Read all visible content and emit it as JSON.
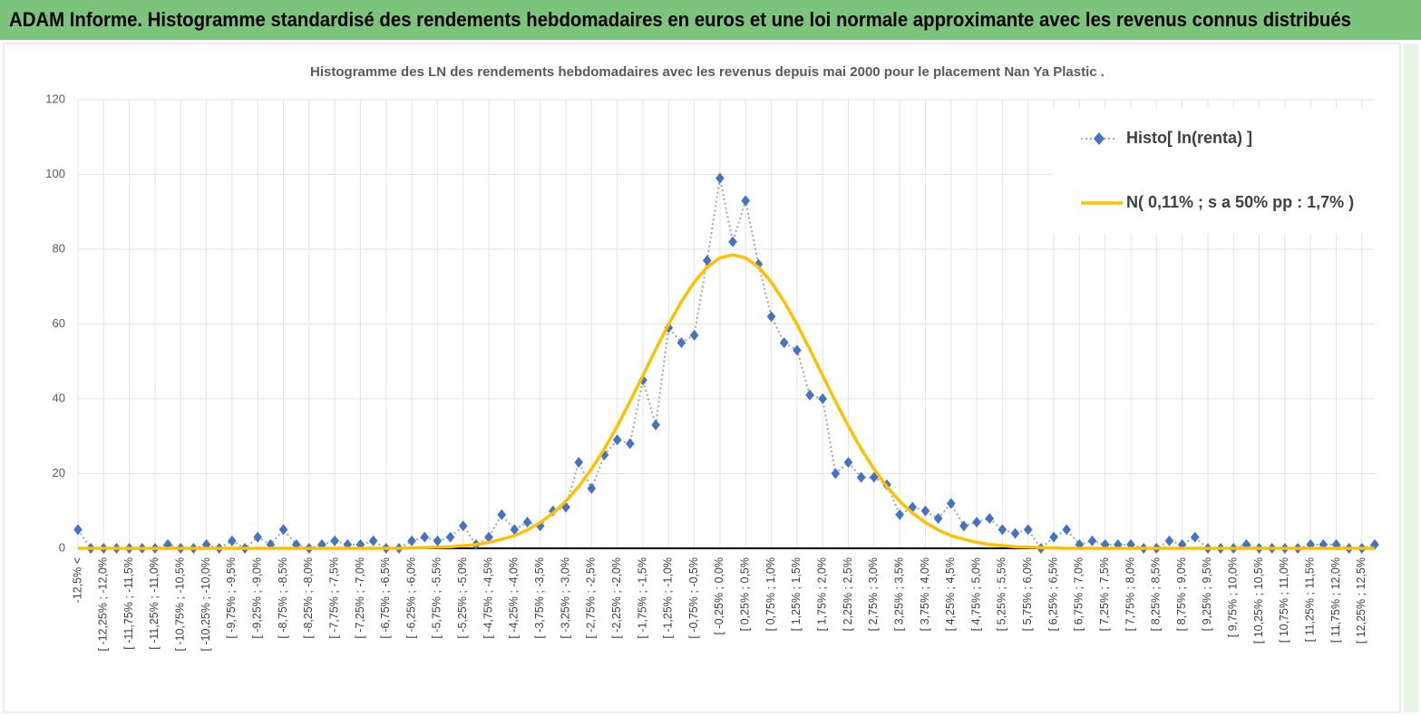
{
  "header": {
    "title": "ADAM Informe. Histogramme standardisé des rendements hebdomadaires en euros et une loi normale approximante avec les revenus connus distribués"
  },
  "chart_data": {
    "type": "line",
    "title": "Histogramme des LN des rendements hebdomadaires avec les revenus depuis mai 2000 pour le placement Nan Ya Plastic .",
    "categories": [
      "-12,5% <",
      null,
      "[ -12,25% ; -12,0%",
      null,
      "[ -11,75% ; -11,5%",
      null,
      "[ -11,25% ; -11,0%",
      null,
      "[ -10,75% ; -10,5%",
      null,
      "[ -10,25% ; -10,0%",
      null,
      "[ -9,75% ; -9,5%",
      null,
      "[ -9,25% ; -9,0%",
      null,
      "[ -8,75% ; -8,5%",
      null,
      "[ -8,25% ; -8,0%",
      null,
      "[ -7,75% ; -7,5%",
      null,
      "[ -7,25% ; -7,0%",
      null,
      "[ -6,75% ; -6,5%",
      null,
      "[ -6,25% ; -6,0%",
      null,
      "[ -5,75% ; -5,5%",
      null,
      "[ -5,25% ; -5,0%",
      null,
      "[ -4,75% ; -4,5%",
      null,
      "[ -4,25% ; -4,0%",
      null,
      "[ -3,75% ; -3,5%",
      null,
      "[ -3,25% ; -3,0%",
      null,
      "[ -2,75% ; -2,5%",
      null,
      "[ -2,25% ; -2,0%",
      null,
      "[ -1,75% ; -1,5%",
      null,
      "[ -1,25% ; -1,0%",
      null,
      "[ -0,75% ; -0,5%",
      null,
      "[ -0,25% ; 0,0%",
      null,
      "[ 0,25% ; 0,5%",
      null,
      "[ 0,75% ; 1,0%",
      null,
      "[ 1,25% ; 1,5%",
      null,
      "[ 1,75% ; 2,0%",
      null,
      "[ 2,25% ; 2,5%",
      null,
      "[ 2,75% ; 3,0%",
      null,
      "[ 3,25% ; 3,5%",
      null,
      "[ 3,75% ; 4,0%",
      null,
      "[ 4,25% ; 4,5%",
      null,
      "[ 4,75% ; 5,0%",
      null,
      "[ 5,25% ; 5,5%",
      null,
      "[ 5,75% ; 6,0%",
      null,
      "[ 6,25% ; 6,5%",
      null,
      "[ 6,75% ; 7,0%",
      null,
      "[ 7,25% ; 7,5%",
      null,
      "[ 7,75% ; 8,0%",
      null,
      "[ 8,25% ; 8,5%",
      null,
      "[ 8,75% ; 9,0%",
      null,
      "[ 9,25% ; 9,5%",
      null,
      "[ 9,75% ; 10,0%",
      null,
      "[ 10,25% ; 10,5%",
      null,
      "[ 10,75% ; 11,0%",
      null,
      "[ 11,25% ; 11,5%",
      null,
      "[ 11,75% ; 12,0%",
      null,
      "[ 12,25% ; 12,5%",
      null
    ],
    "series": [
      {
        "name": "Histo[ ln(renta) ]",
        "color": "#4472c4",
        "line_color": "#a5a5a5",
        "values": [
          5,
          0,
          0,
          0,
          0,
          0,
          0,
          1,
          0,
          0,
          1,
          0,
          2,
          0,
          3,
          1,
          5,
          1,
          0,
          1,
          2,
          1,
          1,
          2,
          0,
          0,
          2,
          3,
          2,
          3,
          6,
          1,
          3,
          9,
          5,
          7,
          6,
          10,
          11,
          23,
          16,
          25,
          29,
          28,
          45,
          33,
          59,
          55,
          57,
          77,
          99,
          82,
          93,
          76,
          62,
          55,
          53,
          41,
          40,
          20,
          23,
          19,
          19,
          17,
          9,
          11,
          10,
          8,
          12,
          6,
          7,
          8,
          5,
          4,
          5,
          0,
          3,
          5,
          1,
          2,
          1,
          1,
          1,
          0,
          0,
          2,
          1,
          3,
          0,
          0,
          0,
          1,
          0,
          0,
          0,
          0,
          1,
          1,
          1,
          0,
          0,
          1
        ]
      },
      {
        "name": "N( 0,11% ; s a 50% pp : 1,7% )",
        "color": "#ffc000",
        "values": [
          0,
          0,
          0,
          0,
          0,
          0,
          0,
          0,
          0,
          0,
          0,
          0,
          0,
          0,
          0,
          0,
          0,
          0,
          0,
          0,
          0,
          0,
          0,
          0,
          0,
          0,
          0.1,
          0.2,
          0.3,
          0.4,
          0.7,
          1.0,
          1.6,
          2.4,
          3.4,
          4.9,
          6.9,
          9.4,
          12.6,
          16.5,
          21.2,
          26.6,
          32.7,
          39.3,
          46.2,
          53.2,
          59.9,
          66.0,
          71.2,
          75.2,
          77.7,
          78.5,
          77.7,
          75.2,
          71.2,
          66.0,
          59.9,
          53.2,
          46.2,
          39.3,
          32.7,
          26.6,
          21.2,
          16.5,
          12.6,
          9.4,
          6.9,
          4.9,
          3.4,
          2.4,
          1.6,
          1.0,
          0.7,
          0.4,
          0.3,
          0.2,
          0.1,
          0,
          0,
          0,
          0,
          0,
          0,
          0,
          0,
          0,
          0,
          0,
          0,
          0,
          0,
          0,
          0,
          0,
          0,
          0,
          0,
          0,
          0,
          0,
          0,
          0
        ]
      }
    ],
    "ylim": [
      0,
      120
    ],
    "yticks": [
      0,
      20,
      40,
      60,
      80,
      100,
      120
    ],
    "grid": true,
    "legend": "upper right"
  }
}
